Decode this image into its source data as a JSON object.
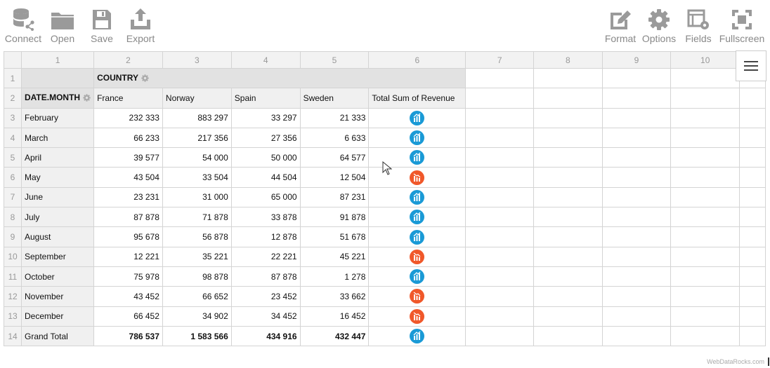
{
  "toolbar": {
    "left": [
      {
        "label": "Connect",
        "icon": "database-connect-icon"
      },
      {
        "label": "Open",
        "icon": "folder-icon"
      },
      {
        "label": "Save",
        "icon": "floppy-disk-icon"
      },
      {
        "label": "Export",
        "icon": "export-icon"
      }
    ],
    "right": [
      {
        "label": "Format",
        "icon": "format-edit-icon"
      },
      {
        "label": "Options",
        "icon": "gear-icon"
      },
      {
        "label": "Fields",
        "icon": "fields-icon"
      },
      {
        "label": "Fullscreen",
        "icon": "fullscreen-icon"
      }
    ]
  },
  "grid": {
    "column_numbers": [
      "1",
      "2",
      "3",
      "4",
      "5",
      "6",
      "7",
      "8",
      "9",
      "10"
    ],
    "row_numbers": [
      "1",
      "2",
      "3",
      "4",
      "5",
      "6",
      "7",
      "8",
      "9",
      "10",
      "11",
      "12",
      "13",
      "14"
    ],
    "column_field": "COUNTRY",
    "row_field": "DATE.MONTH",
    "countries": [
      "France",
      "Norway",
      "Spain",
      "Sweden",
      "Total Sum of Revenue"
    ],
    "rows": [
      {
        "label": "February",
        "values": [
          "232 333",
          "883 297",
          "33 297",
          "21 333"
        ],
        "kpi": "up"
      },
      {
        "label": "March",
        "values": [
          "66 233",
          "217 356",
          "27 356",
          "6 633"
        ],
        "kpi": "up"
      },
      {
        "label": "April",
        "values": [
          "39 577",
          "54 000",
          "50 000",
          "64 577"
        ],
        "kpi": "up"
      },
      {
        "label": "May",
        "values": [
          "43 504",
          "33 504",
          "44 504",
          "12 504"
        ],
        "kpi": "down"
      },
      {
        "label": "June",
        "values": [
          "23 231",
          "31 000",
          "65 000",
          "87 231"
        ],
        "kpi": "up"
      },
      {
        "label": "July",
        "values": [
          "87 878",
          "71 878",
          "33 878",
          "91 878"
        ],
        "kpi": "up"
      },
      {
        "label": "August",
        "values": [
          "95 678",
          "56 878",
          "12 878",
          "51 678"
        ],
        "kpi": "up"
      },
      {
        "label": "September",
        "values": [
          "12 221",
          "35 221",
          "22 221",
          "45 221"
        ],
        "kpi": "down"
      },
      {
        "label": "October",
        "values": [
          "75 978",
          "98 878",
          "87 878",
          "1 278"
        ],
        "kpi": "up"
      },
      {
        "label": "November",
        "values": [
          "43 452",
          "66 652",
          "23 452",
          "33 662"
        ],
        "kpi": "down"
      },
      {
        "label": "December",
        "values": [
          "66 452",
          "34 902",
          "34 452",
          "16 452"
        ],
        "kpi": "down"
      }
    ],
    "grand_total": {
      "label": "Grand Total",
      "values": [
        "786 537",
        "1 583 566",
        "434 916",
        "432 447"
      ],
      "kpi": "up"
    }
  },
  "colors": {
    "kpi_up": "#1a9ad6",
    "kpi_down": "#f0582a",
    "header_bg": "#f2f2f2",
    "field_bg": "#e2e2e2"
  },
  "credit": "WebDataRocks.com"
}
